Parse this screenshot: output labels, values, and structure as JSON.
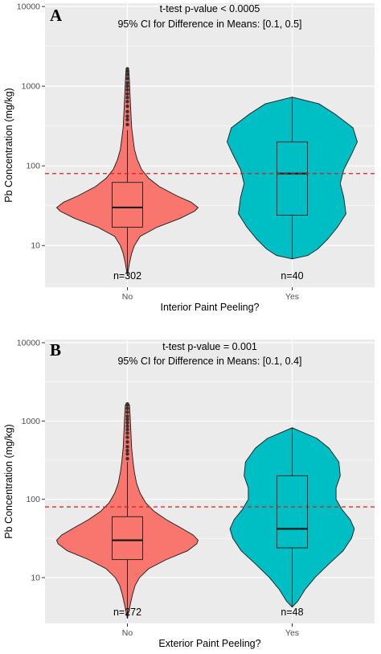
{
  "chart_data": [
    {
      "type": "violin",
      "panel_label": "A",
      "annotation_lines": [
        "t-test p-value < 0.0005",
        "95% CI for Difference in Means: [0.1, 0.5]"
      ],
      "xlabel": "Interior Paint Peeling?",
      "ylabel": "Pb Concentration (mg/kg)",
      "y_scale": "log10",
      "ylim": [
        3,
        11000
      ],
      "y_ticks": [
        10,
        100,
        1000,
        10000
      ],
      "y_tick_labels": [
        "10",
        "100",
        "1000",
        "10000"
      ],
      "grid": true,
      "reference_line": {
        "y": 80,
        "style": "dashed",
        "color": "#e31a1c"
      },
      "categories": [
        "No",
        "Yes"
      ],
      "counts": [
        "n=302",
        "n=40"
      ],
      "colors": [
        "#f8766d",
        "#00bfc4"
      ],
      "groups": [
        {
          "category": "No",
          "box": {
            "min": 4.2,
            "q1": 17,
            "median": 30,
            "q3": 62,
            "whisker_high": 280
          },
          "outliers": [
            330,
            380,
            420,
            480,
            560,
            640,
            720,
            800,
            900,
            1000,
            1100,
            1250,
            1400,
            1550,
            1650
          ],
          "density": [
            [
              4.2,
              0
            ],
            [
              6,
              0.03
            ],
            [
              8,
              0.06
            ],
            [
              10,
              0.1
            ],
            [
              13,
              0.18
            ],
            [
              17,
              0.42
            ],
            [
              22,
              0.75
            ],
            [
              27,
              0.95
            ],
            [
              30,
              1.0
            ],
            [
              35,
              0.9
            ],
            [
              42,
              0.7
            ],
            [
              55,
              0.45
            ],
            [
              70,
              0.3
            ],
            [
              90,
              0.2
            ],
            [
              120,
              0.14
            ],
            [
              160,
              0.1
            ],
            [
              220,
              0.08
            ],
            [
              300,
              0.06
            ],
            [
              450,
              0.05
            ],
            [
              700,
              0.04
            ],
            [
              1100,
              0.03
            ],
            [
              1600,
              0.02
            ],
            [
              1700,
              0
            ]
          ]
        },
        {
          "category": "Yes",
          "box": {
            "min": 6.8,
            "q1": 24,
            "median": 80,
            "q3": 200,
            "whisker_high": 730
          },
          "outliers": [],
          "density": [
            [
              6.8,
              0
            ],
            [
              7.5,
              0.22
            ],
            [
              9,
              0.36
            ],
            [
              12,
              0.5
            ],
            [
              17,
              0.64
            ],
            [
              25,
              0.76
            ],
            [
              40,
              0.73
            ],
            [
              60,
              0.68
            ],
            [
              90,
              0.73
            ],
            [
              140,
              0.84
            ],
            [
              200,
              0.92
            ],
            [
              300,
              0.86
            ],
            [
              450,
              0.6
            ],
            [
              600,
              0.38
            ],
            [
              730,
              0
            ]
          ]
        }
      ]
    },
    {
      "type": "violin",
      "panel_label": "B",
      "annotation_lines": [
        "t-test p-value = 0.001",
        "95% CI for Difference in Means: [0.1, 0.4]"
      ],
      "xlabel": "Exterior Paint Peeling?",
      "ylabel": "Pb Concentration (mg/kg)",
      "y_scale": "log10",
      "ylim": [
        2.6,
        11000
      ],
      "y_ticks": [
        10,
        100,
        1000,
        10000
      ],
      "y_tick_labels": [
        "10",
        "100",
        "1000",
        "10000"
      ],
      "grid": true,
      "reference_line": {
        "y": 80,
        "style": "dashed",
        "color": "#e31a1c"
      },
      "categories": [
        "No",
        "Yes"
      ],
      "counts": [
        "n=272",
        "n=48"
      ],
      "colors": [
        "#f8766d",
        "#00bfc4"
      ],
      "groups": [
        {
          "category": "No",
          "box": {
            "min": 3,
            "q1": 17,
            "median": 30,
            "q3": 60,
            "whisker_high": 300
          },
          "outliers": [
            330,
            380,
            420,
            470,
            540,
            620,
            700,
            780,
            860,
            950,
            1050,
            1150,
            1300,
            1450,
            1600,
            1650
          ],
          "density": [
            [
              3,
              0
            ],
            [
              4.5,
              0.04
            ],
            [
              6,
              0.07
            ],
            [
              8,
              0.11
            ],
            [
              10,
              0.17
            ],
            [
              13,
              0.3
            ],
            [
              17,
              0.55
            ],
            [
              22,
              0.85
            ],
            [
              27,
              0.98
            ],
            [
              30,
              1.0
            ],
            [
              35,
              0.93
            ],
            [
              42,
              0.78
            ],
            [
              55,
              0.55
            ],
            [
              70,
              0.38
            ],
            [
              90,
              0.26
            ],
            [
              120,
              0.18
            ],
            [
              160,
              0.13
            ],
            [
              220,
              0.1
            ],
            [
              300,
              0.08
            ],
            [
              450,
              0.06
            ],
            [
              700,
              0.05
            ],
            [
              1100,
              0.04
            ],
            [
              1600,
              0.03
            ],
            [
              1700,
              0
            ]
          ]
        },
        {
          "category": "Yes",
          "box": {
            "min": 4.2,
            "q1": 24,
            "median": 42,
            "q3": 200,
            "whisker_high": 820
          },
          "outliers": [],
          "density": [
            [
              4.2,
              0
            ],
            [
              5,
              0.08
            ],
            [
              7,
              0.18
            ],
            [
              10,
              0.32
            ],
            [
              15,
              0.52
            ],
            [
              22,
              0.72
            ],
            [
              32,
              0.84
            ],
            [
              42,
              0.88
            ],
            [
              55,
              0.82
            ],
            [
              75,
              0.7
            ],
            [
              100,
              0.62
            ],
            [
              140,
              0.62
            ],
            [
              200,
              0.68
            ],
            [
              300,
              0.66
            ],
            [
              450,
              0.52
            ],
            [
              600,
              0.35
            ],
            [
              820,
              0
            ]
          ]
        }
      ]
    }
  ]
}
